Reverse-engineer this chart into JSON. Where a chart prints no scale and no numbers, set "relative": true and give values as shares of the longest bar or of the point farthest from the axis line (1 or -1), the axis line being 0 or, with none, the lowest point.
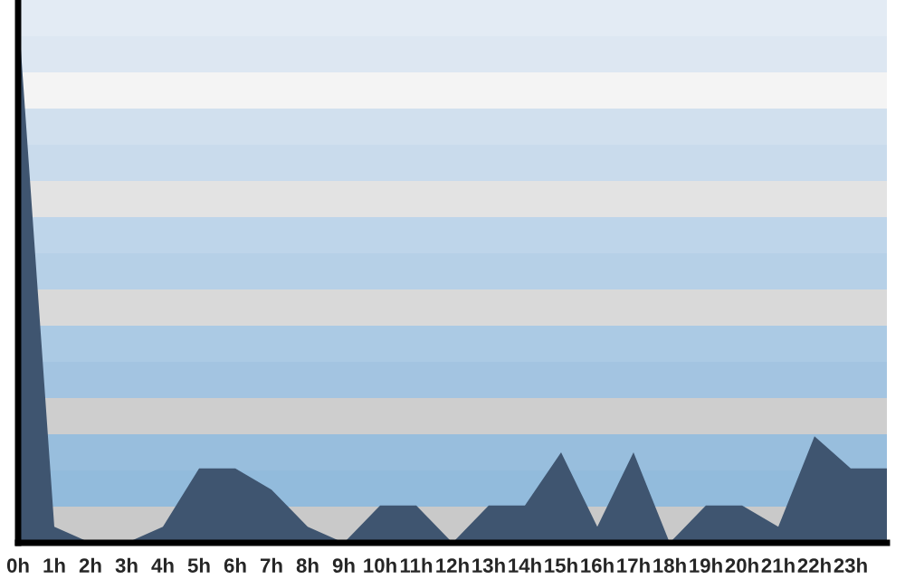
{
  "chart_data": {
    "type": "area",
    "relative": true,
    "categories": [
      "0h",
      "1h",
      "2h",
      "3h",
      "4h",
      "5h",
      "6h",
      "7h",
      "8h",
      "9h",
      "10h",
      "11h",
      "12h",
      "13h",
      "14h",
      "15h",
      "16h",
      "17h",
      "18h",
      "19h",
      "20h",
      "21h",
      "22h",
      "23h",
      null
    ],
    "series": [
      {
        "color": "#3f5570",
        "values": [
          1.0,
          0.03,
          0,
          0,
          0.03,
          0.14,
          0.14,
          0.1,
          0.03,
          0,
          0.07,
          0.07,
          0,
          0.07,
          0.07,
          0.17,
          0.03,
          0.17,
          0,
          0.07,
          0.07,
          0.03,
          0.2,
          0.14,
          0.14
        ]
      }
    ],
    "grid": false,
    "legend": false
  }
}
